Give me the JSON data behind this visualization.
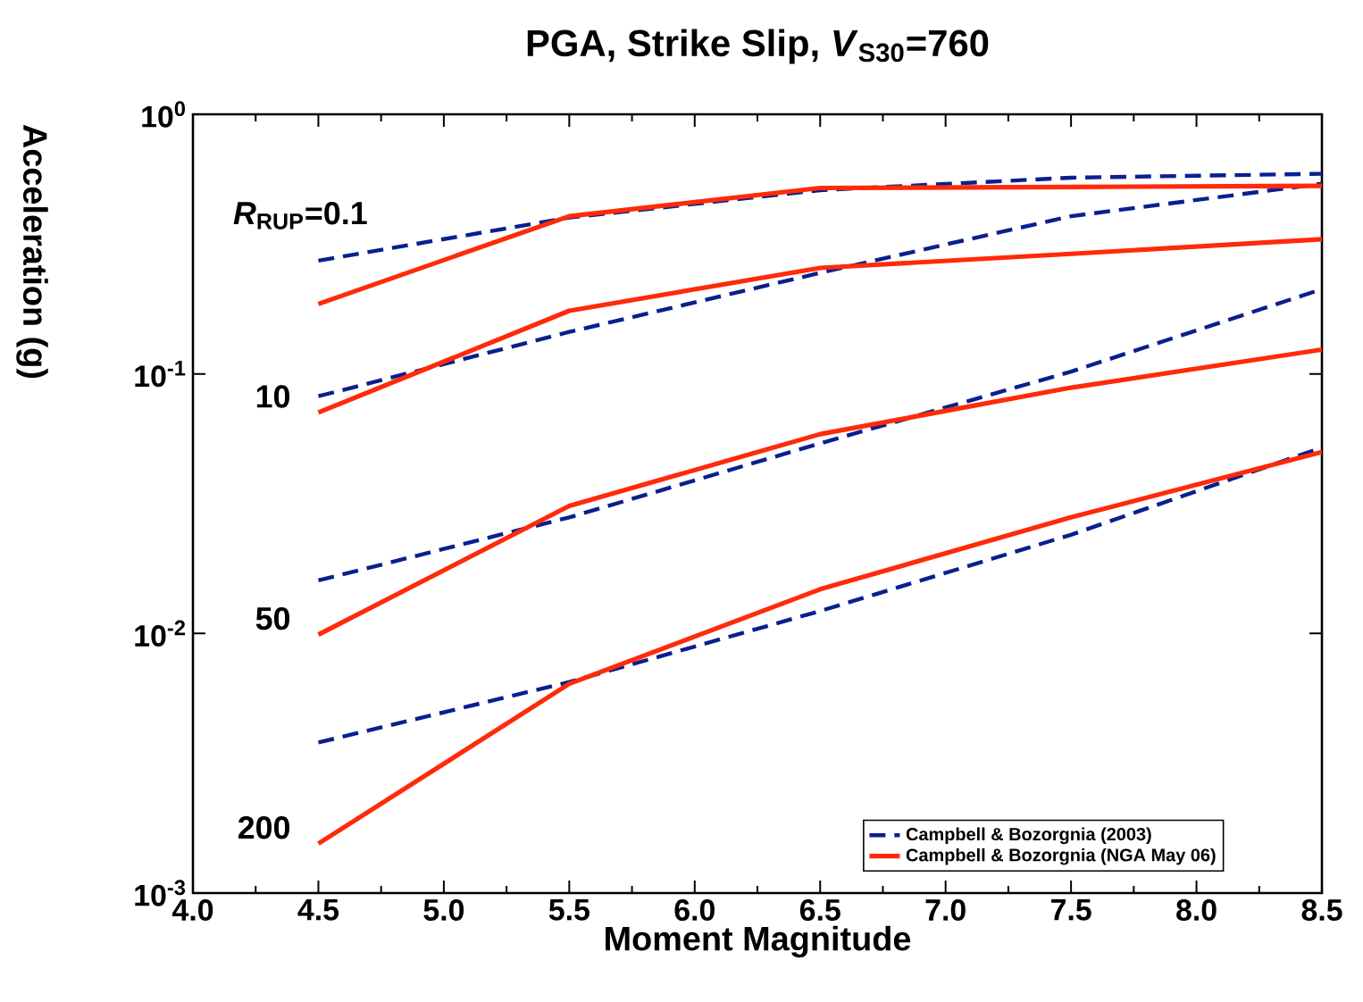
{
  "chart_data": {
    "type": "line",
    "title": "PGA, Strike Slip, *V*$_{S30}$=760",
    "xlabel": "Moment Magnitude",
    "ylabel": "Acceleration (g)",
    "log": "y",
    "xlim": [
      4.0,
      8.5
    ],
    "ylim": [
      0.001,
      1
    ],
    "xticks": [
      {
        "value": 4.0,
        "label": "4.0"
      },
      {
        "value": 4.5,
        "label": "4.5"
      },
      {
        "value": 5.0,
        "label": "5.0"
      },
      {
        "value": 5.5,
        "label": "5.5"
      },
      {
        "value": 6.0,
        "label": "6.0"
      },
      {
        "value": 6.5,
        "label": "6.5"
      },
      {
        "value": 7.0,
        "label": "7.0"
      },
      {
        "value": 7.5,
        "label": "7.5"
      },
      {
        "value": 8.0,
        "label": "8.0"
      },
      {
        "value": 8.5,
        "label": "8.5"
      }
    ],
    "yticks": [
      {
        "value": 0.001,
        "label": "10$^{-3}$"
      },
      {
        "value": 0.01,
        "label": "10$^{-2}$"
      },
      {
        "value": 0.1,
        "label": "10$^{-1}$"
      },
      {
        "value": 1,
        "label": "10$^{0}$"
      }
    ],
    "grid": false,
    "legend": "bottom right",
    "marker": "none",
    "x": [
      4.5,
      5.5,
      6.5,
      7.5,
      8.5
    ],
    "series": [
      {
        "name": "Campbell & Bozorgnia (2003)",
        "color": "#0a1f8f",
        "line_style": "dashed",
        "values": [
          0.273,
          0.4,
          0.51,
          0.57,
          0.59
        ]
      },
      {
        "color": "#0a1f8f",
        "line_style": "dashed",
        "values": [
          0.082,
          0.145,
          0.245,
          0.405,
          0.54
        ]
      },
      {
        "color": "#0a1f8f",
        "line_style": "dashed",
        "values": [
          0.016,
          0.028,
          0.054,
          0.102,
          0.212
        ]
      },
      {
        "color": "#0a1f8f",
        "line_style": "dashed",
        "values": [
          0.0038,
          0.0065,
          0.0122,
          0.024,
          0.052
        ]
      },
      {
        "name": "Campbell & Bozorgnia (NGA May 06)",
        "color": "#ff2a0a",
        "line_style": "solid",
        "values": [
          0.186,
          0.405,
          0.52,
          0.525,
          0.53
        ]
      },
      {
        "color": "#ff2a0a",
        "line_style": "solid",
        "values": [
          0.071,
          0.175,
          0.256,
          0.29,
          0.33
        ]
      },
      {
        "color": "#ff2a0a",
        "line_style": "solid",
        "values": [
          0.0099,
          0.031,
          0.0586,
          0.0885,
          0.124
        ]
      },
      {
        "color": "#ff2a0a",
        "line_style": "solid",
        "values": [
          0.00155,
          0.0064,
          0.0148,
          0.028,
          0.05
        ]
      }
    ],
    "annotations": [
      "*R*$_{RUP}$=0.1",
      "10",
      "50",
      "200"
    ]
  }
}
